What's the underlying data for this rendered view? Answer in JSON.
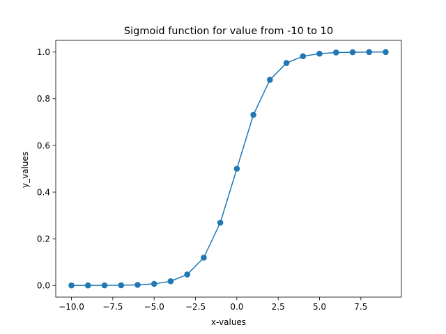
{
  "chart_data": {
    "type": "line",
    "title": "Sigmoid function for value from -10 to 10",
    "xlabel": "x-values",
    "ylabel": "y_values",
    "xlim": [
      -10.95,
      9.95
    ],
    "ylim": [
      -0.05,
      1.05
    ],
    "x_ticks": [
      -10.0,
      -7.5,
      -5.0,
      -2.5,
      0.0,
      2.5,
      5.0,
      7.5
    ],
    "x_tick_labels": [
      "−10.0",
      "−7.5",
      "−5.0",
      "−2.5",
      "0.0",
      "2.5",
      "5.0",
      "7.5"
    ],
    "y_ticks": [
      0.0,
      0.2,
      0.4,
      0.6,
      0.8,
      1.0
    ],
    "y_tick_labels": [
      "0.0",
      "0.2",
      "0.4",
      "0.6",
      "0.8",
      "1.0"
    ],
    "grid": false,
    "series": [
      {
        "color": "#1f77b4",
        "marker": "circle",
        "x": [
          -10,
          -9,
          -8,
          -7,
          -6,
          -5,
          -4,
          -3,
          -2,
          -1,
          0,
          1,
          2,
          3,
          4,
          5,
          6,
          7,
          8,
          9
        ],
        "y": [
          0.0,
          0.0001,
          0.0003,
          0.0009,
          0.0025,
          0.0067,
          0.018,
          0.047,
          0.119,
          0.269,
          0.5,
          0.731,
          0.881,
          0.953,
          0.982,
          0.993,
          0.998,
          0.999,
          1.0,
          1.0
        ]
      }
    ]
  }
}
